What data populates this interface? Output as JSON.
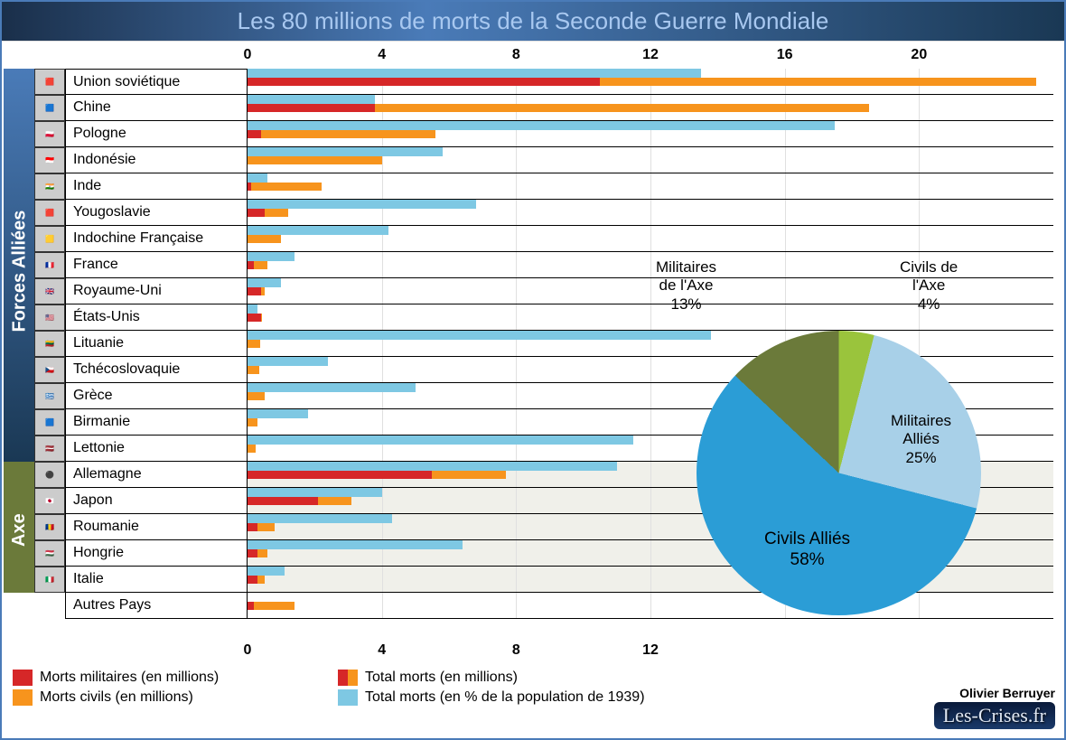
{
  "title": "Les 80 millions de morts de la Seconde Guerre Mondiale",
  "author": "Olivier Berruyer",
  "site_logo": "Les-Crises.fr",
  "groups": {
    "allies_label": "Forces Alliées",
    "axe_label": "Axe"
  },
  "bar_chart": {
    "type": "bar",
    "xlim": [
      0,
      24
    ],
    "top_ticks": [
      0,
      4,
      8,
      12,
      16,
      20
    ],
    "bottom_ticks": [
      0,
      4,
      8,
      12
    ],
    "colors": {
      "military": "#d62728",
      "civil": "#f7941d",
      "total_overlay": "#f7941d",
      "pct_pop": "#7ec8e3",
      "grid": "#e0e0e0",
      "axis_shade": "#f0f0ea"
    },
    "countries_allies": [
      {
        "name": "Union soviétique",
        "flag": "🟥",
        "military": 10.5,
        "total": 23.5,
        "pct": 13.5
      },
      {
        "name": "Chine",
        "flag": "🟦",
        "military": 3.8,
        "total": 18.5,
        "pct": 3.8
      },
      {
        "name": "Pologne",
        "flag": "🇵🇱",
        "military": 0.4,
        "total": 5.6,
        "pct": 17.5
      },
      {
        "name": "Indonésie",
        "flag": "🇮🇩",
        "military": 0.0,
        "total": 4.0,
        "pct": 5.8
      },
      {
        "name": "Inde",
        "flag": "🇮🇳",
        "military": 0.1,
        "total": 2.2,
        "pct": 0.6
      },
      {
        "name": "Yougoslavie",
        "flag": "🟥",
        "military": 0.5,
        "total": 1.2,
        "pct": 6.8
      },
      {
        "name": "Indochine Française",
        "flag": "🟨",
        "military": 0.0,
        "total": 1.0,
        "pct": 4.2
      },
      {
        "name": "France",
        "flag": "🇫🇷",
        "military": 0.2,
        "total": 0.6,
        "pct": 1.4
      },
      {
        "name": "Royaume-Uni",
        "flag": "🇬🇧",
        "military": 0.4,
        "total": 0.5,
        "pct": 1.0
      },
      {
        "name": "États-Unis",
        "flag": "🇺🇸",
        "military": 0.4,
        "total": 0.42,
        "pct": 0.3
      },
      {
        "name": "Lituanie",
        "flag": "🇱🇹",
        "military": 0.0,
        "total": 0.37,
        "pct": 13.8
      },
      {
        "name": "Tchécoslovaquie",
        "flag": "🇨🇿",
        "military": 0.0,
        "total": 0.35,
        "pct": 2.4
      },
      {
        "name": "Grèce",
        "flag": "🇬🇷",
        "military": 0.0,
        "total": 0.5,
        "pct": 5.0
      },
      {
        "name": "Birmanie",
        "flag": "🟦",
        "military": 0.0,
        "total": 0.3,
        "pct": 1.8
      },
      {
        "name": "Lettonie",
        "flag": "🇱🇻",
        "military": 0.0,
        "total": 0.25,
        "pct": 11.5
      }
    ],
    "countries_axe": [
      {
        "name": "Allemagne",
        "flag": "⚫",
        "military": 5.5,
        "total": 7.7,
        "pct": 11.0
      },
      {
        "name": "Japon",
        "flag": "🇯🇵",
        "military": 2.1,
        "total": 3.1,
        "pct": 4.0
      },
      {
        "name": "Roumanie",
        "flag": "🇷🇴",
        "military": 0.3,
        "total": 0.8,
        "pct": 4.3
      },
      {
        "name": "Hongrie",
        "flag": "🇭🇺",
        "military": 0.3,
        "total": 0.58,
        "pct": 6.4
      },
      {
        "name": "Italie",
        "flag": "🇮🇹",
        "military": 0.3,
        "total": 0.5,
        "pct": 1.1
      }
    ],
    "other": {
      "name": "Autres Pays",
      "flag": "",
      "military": 0.2,
      "total": 1.4,
      "pct": 0.0
    }
  },
  "pie_chart": {
    "type": "pie",
    "slices": [
      {
        "label": "Militaires\nde l'Axe",
        "pct": 13,
        "color": "#6b7a3a",
        "label_html": "Militaires<br>de l'Axe<br>13%"
      },
      {
        "label": "Civils de\nl'Axe",
        "pct": 4,
        "color": "#9ac43c",
        "label_html": "Civils de<br>l'Axe<br>4%"
      },
      {
        "label": "Militaires\nAlliés",
        "pct": 25,
        "color": "#a8d0e8",
        "label_html": "Militaires<br>Alliés<br>25%"
      },
      {
        "label": "Civils Alliés",
        "pct": 58,
        "color": "#2b9dd6",
        "label_html": "Civils Alliés<br>58%"
      }
    ]
  },
  "legend": [
    {
      "label": "Morts militaires (en millions)",
      "color": "#d62728"
    },
    {
      "label": "Morts civils (en millions)",
      "color": "#f7941d"
    },
    {
      "label": "Total morts (en millions)",
      "color": "#f7941d",
      "overlay": "#d62728"
    },
    {
      "label": "Total morts (en % de la population de 1939)",
      "color": "#7ec8e3"
    }
  ]
}
